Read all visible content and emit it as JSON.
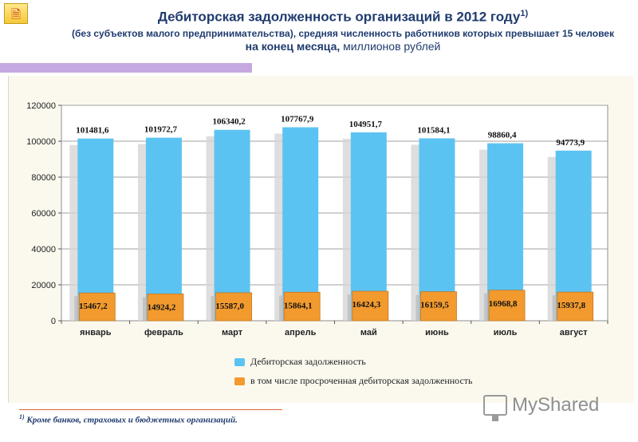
{
  "header": {
    "title": "Дебиторская задолженность организаций в 2012 году",
    "title_sup": "1)",
    "subtitle_line1": "(без субъектов малого предпринимательства), средняя численность работников которых превышает 15 человек",
    "subtitle_line2_bold": "на конец месяца,",
    "subtitle_line2_rest": " миллионов рублей"
  },
  "chart_data": {
    "type": "bar",
    "categories": [
      "январь",
      "февраль",
      "март",
      "апрель",
      "май",
      "июнь",
      "июль",
      "август"
    ],
    "series": [
      {
        "name": "Дебиторская задолженность",
        "color": "#5bc3f2",
        "values": [
          101481.6,
          101972.7,
          106340.2,
          107767.9,
          104951.7,
          101584.1,
          98860.4,
          94773.9
        ],
        "labels": [
          "101481,6",
          "101972,7",
          "106340,2",
          "107767,9",
          "104951,7",
          "101584,1",
          "98860,4",
          "94773,9"
        ]
      },
      {
        "name": "в том числе просроченная дебиторская задолженность",
        "color": "#f29a2e",
        "values": [
          15467.2,
          14924.2,
          15587.0,
          15864.1,
          16424.3,
          16159.5,
          16968.8,
          15937.8
        ],
        "labels": [
          "15467,2",
          "14924,2",
          "15587,0",
          "15864,1",
          "16424,3",
          "16159,5",
          "16968,8",
          "15937,8"
        ]
      }
    ],
    "yticks": [
      "0",
      "20000",
      "40000",
      "60000",
      "80000",
      "100000",
      "120000"
    ],
    "ylim": [
      0,
      120000
    ],
    "grid": true,
    "legend": "bottom"
  },
  "footnote": {
    "sup": "1)",
    "text": " Кроме банков, страховых и бюджетных организаций."
  },
  "watermark": {
    "text": "MyShared",
    "icon": "presentation-screen-icon"
  },
  "top_icon": {
    "icon": "document-icon"
  }
}
